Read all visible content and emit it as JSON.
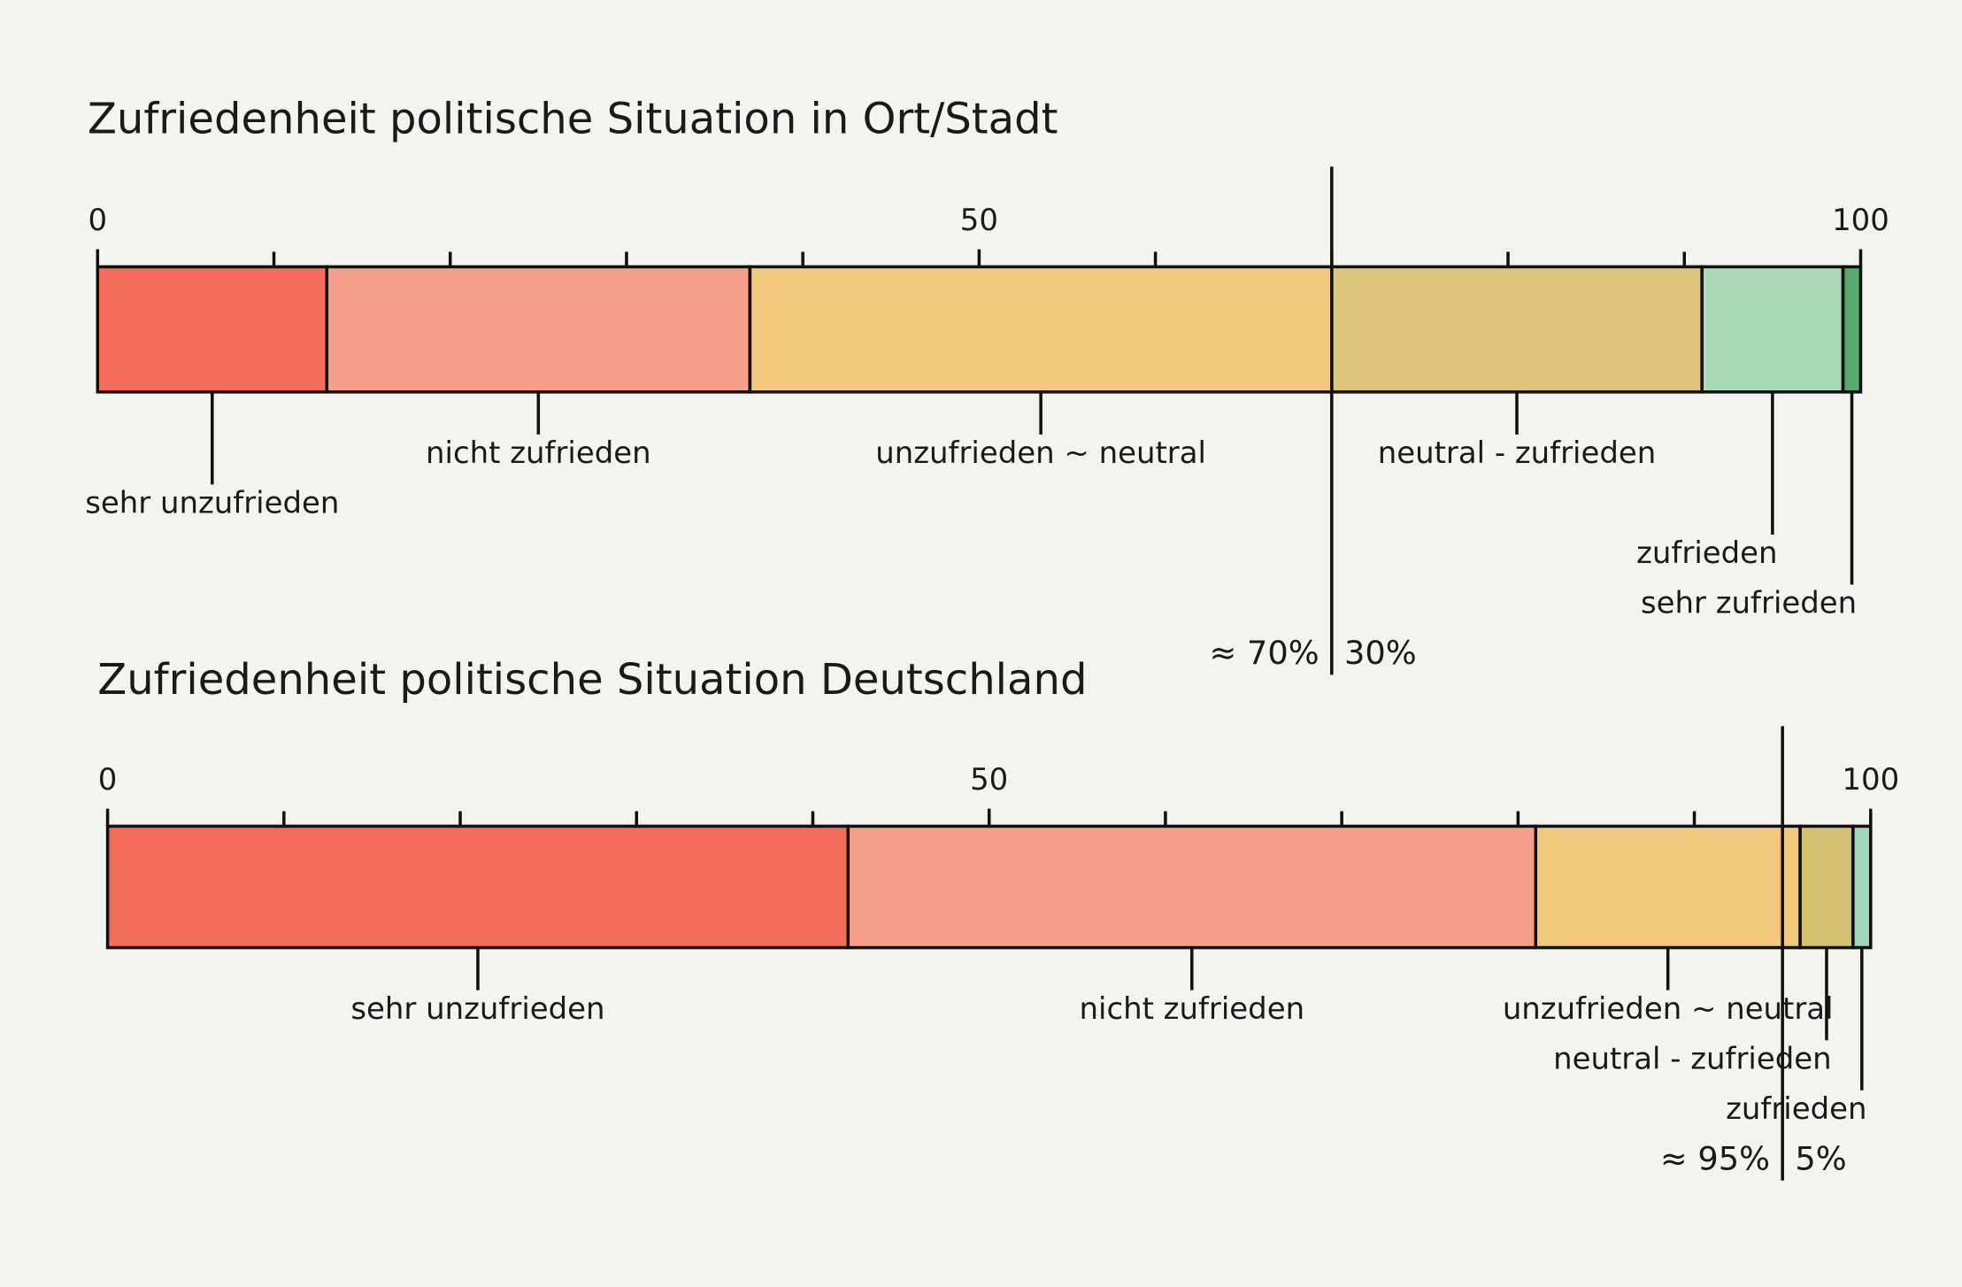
{
  "chart_data": [
    {
      "type": "stacked-bar",
      "title": "Zufriedenheit politische Situation in Ort/Stadt",
      "xlim": [
        0,
        100
      ],
      "xticks": [
        0,
        50,
        100
      ],
      "minor_xticks": [
        10,
        20,
        30,
        40,
        60,
        70,
        80,
        90
      ],
      "series": [
        {
          "name": "sehr unzufrieden",
          "color": "#f5553f",
          "values": [
            13
          ]
        },
        {
          "name": "nicht zufrieden",
          "color": "#f8917c",
          "values": [
            24
          ]
        },
        {
          "name": "unzufrieden ~ neutral",
          "color": "#f0bf68",
          "values": [
            33
          ]
        },
        {
          "name": "neutral - zufrieden",
          "color": "#d8bd66",
          "values": [
            21
          ]
        },
        {
          "name": "zufrieden",
          "color": "#9dd6ab",
          "values": [
            8
          ]
        },
        {
          "name": "sehr zufrieden",
          "color": "#3e9a5a",
          "values": [
            1
          ]
        }
      ],
      "split": {
        "value": 70,
        "left_label": "≈ 70%",
        "right_label": "30%"
      }
    },
    {
      "type": "stacked-bar",
      "title": "Zufriedenheit politische Situation Deutschland",
      "xlim": [
        0,
        100
      ],
      "xticks": [
        0,
        50,
        100
      ],
      "minor_xticks": [
        10,
        20,
        30,
        40,
        60,
        70,
        80,
        90
      ],
      "series": [
        {
          "name": "sehr unzufrieden",
          "color": "#f5553f",
          "values": [
            42
          ]
        },
        {
          "name": "nicht zufrieden",
          "color": "#f8917c",
          "values": [
            39
          ]
        },
        {
          "name": "unzufrieden ~ neutral",
          "color": "#f0bf68",
          "values": [
            15
          ]
        },
        {
          "name": "neutral - zufrieden",
          "color": "#cbb95c",
          "values": [
            3
          ]
        },
        {
          "name": "zufrieden",
          "color": "#8fcfb2",
          "values": [
            1
          ]
        }
      ],
      "split": {
        "value": 95,
        "left_label": "≈ 95%",
        "right_label": "5%"
      }
    }
  ]
}
